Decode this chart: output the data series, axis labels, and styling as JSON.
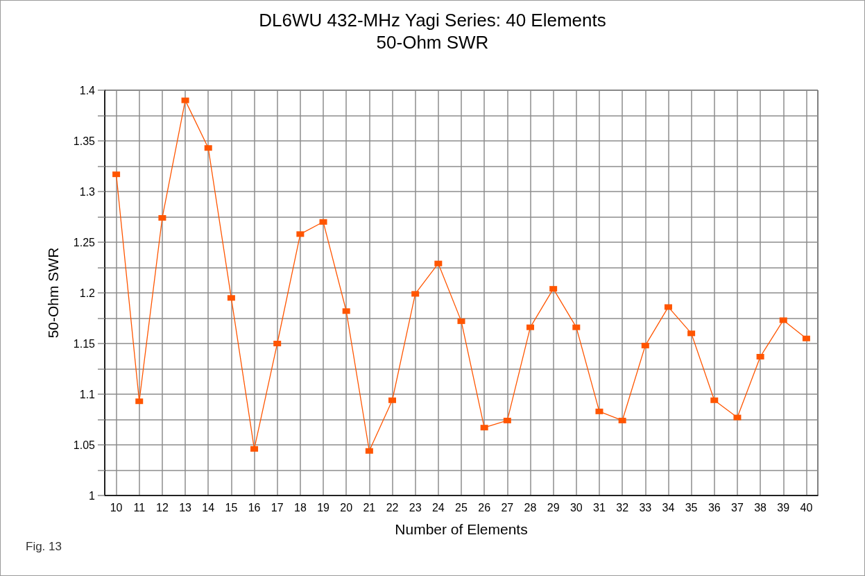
{
  "chart_data": {
    "type": "line",
    "title": "DL6WU 432-MHz Yagi Series: 40 Elements",
    "subtitle": "50-Ohm SWR",
    "xlabel": "Number of Elements",
    "ylabel": "50-Ohm SWR",
    "annotations": [
      "Fig. 13"
    ],
    "x": [
      10,
      11,
      12,
      13,
      14,
      15,
      16,
      17,
      18,
      19,
      20,
      21,
      22,
      23,
      24,
      25,
      26,
      27,
      28,
      29,
      30,
      31,
      32,
      33,
      34,
      35,
      36,
      37,
      38,
      39,
      40
    ],
    "values": [
      1.317,
      1.093,
      1.274,
      1.39,
      1.343,
      1.195,
      1.046,
      1.15,
      1.258,
      1.27,
      1.182,
      1.044,
      1.094,
      1.199,
      1.229,
      1.172,
      1.067,
      1.074,
      1.166,
      1.204,
      1.166,
      1.083,
      1.074,
      1.148,
      1.186,
      1.16,
      1.094,
      1.077,
      1.137,
      1.173,
      1.155
    ],
    "color": "#ff5500",
    "xlim": [
      9.5,
      40.5
    ],
    "xticks": [
      10,
      11,
      12,
      13,
      14,
      15,
      16,
      17,
      18,
      19,
      20,
      21,
      22,
      23,
      24,
      25,
      26,
      27,
      28,
      29,
      30,
      31,
      32,
      33,
      34,
      35,
      36,
      37,
      38,
      39,
      40
    ],
    "ylim": [
      1,
      1.4
    ],
    "yticks": [
      1,
      {
        "value": 1.025,
        "label": null
      },
      1.05,
      {
        "value": 1.075,
        "label": null
      },
      1.1,
      {
        "value": 1.125,
        "label": null
      },
      1.15,
      {
        "value": 1.175,
        "label": null
      },
      1.2,
      {
        "value": 1.225,
        "label": null
      },
      1.25,
      {
        "value": 1.275,
        "label": null
      },
      1.3,
      {
        "value": 1.325,
        "label": null
      },
      1.35,
      {
        "value": 1.375,
        "label": null
      },
      1.4
    ],
    "grid": true,
    "marker": "square",
    "line_style": "solid"
  }
}
